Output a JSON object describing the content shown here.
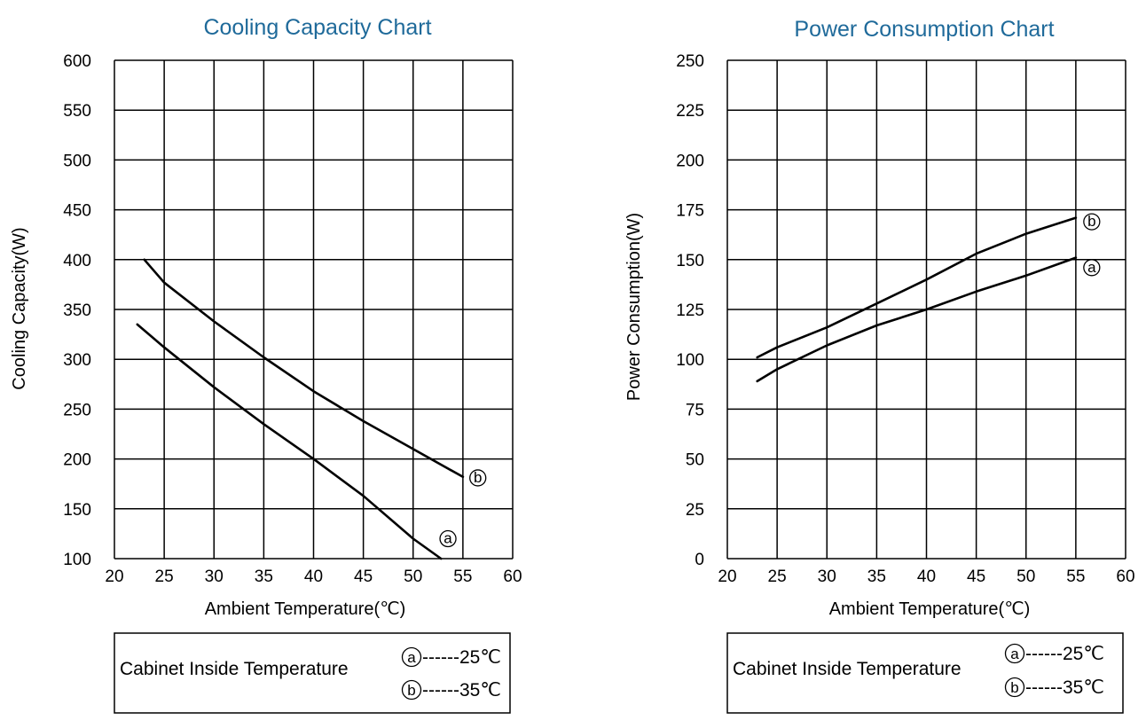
{
  "chart_data": [
    {
      "type": "line",
      "title": "Cooling Capacity Chart",
      "xlabel": "Ambient Temperature(℃)",
      "ylabel": "Cooling  Capacity(W)",
      "xlim": [
        20,
        60
      ],
      "ylim": [
        100,
        600
      ],
      "x_ticks": [
        20,
        25,
        30,
        35,
        40,
        45,
        50,
        55,
        60
      ],
      "y_ticks": [
        100,
        150,
        200,
        250,
        300,
        350,
        400,
        450,
        500,
        550,
        600
      ],
      "grid": true,
      "series": [
        {
          "name": "a",
          "x": [
            22.3,
            25,
            30,
            35,
            40,
            45,
            50,
            52.8
          ],
          "values": [
            335,
            312,
            272,
            235,
            200,
            163,
            120,
            100
          ]
        },
        {
          "name": "b",
          "x": [
            23,
            25,
            30,
            35,
            40,
            45,
            50,
            55
          ],
          "values": [
            400,
            377,
            338,
            302,
            268,
            238,
            210,
            182
          ]
        }
      ],
      "marker_labels": [
        {
          "text": "a",
          "x": 53.5,
          "y": 120
        },
        {
          "text": "b",
          "x": 56.5,
          "y": 181
        }
      ],
      "legend": {
        "label": "Cabinet Inside Temperature",
        "entries": [
          {
            "marker": "a",
            "text": "------25℃"
          },
          {
            "marker": "b",
            "text": "------35℃"
          }
        ]
      }
    },
    {
      "type": "line",
      "title": "Power Consumption Chart",
      "xlabel": "Ambient Temperature(℃)",
      "ylabel": "Power Consumption(W)",
      "xlim": [
        20,
        60
      ],
      "ylim": [
        0,
        250
      ],
      "x_ticks": [
        20,
        25,
        30,
        35,
        40,
        45,
        50,
        55,
        60
      ],
      "y_ticks": [
        0,
        25,
        50,
        75,
        100,
        125,
        150,
        175,
        200,
        225,
        250
      ],
      "grid": true,
      "series": [
        {
          "name": "a",
          "x": [
            23,
            25,
            30,
            35,
            40,
            45,
            50,
            55
          ],
          "values": [
            89,
            95,
            107,
            117,
            125,
            134,
            142,
            151
          ]
        },
        {
          "name": "b",
          "x": [
            23,
            25,
            30,
            35,
            40,
            45,
            50,
            55
          ],
          "values": [
            101,
            106,
            116,
            128,
            140,
            153,
            163,
            171
          ]
        }
      ],
      "marker_labels": [
        {
          "text": "a",
          "x": 56.6,
          "y": 146
        },
        {
          "text": "b",
          "x": 56.6,
          "y": 169
        }
      ],
      "legend": {
        "label": "Cabinet Inside Temperature",
        "entries": [
          {
            "marker": "a",
            "text": " ------25℃"
          },
          {
            "marker": "b",
            "text": " ------35℃"
          }
        ]
      }
    }
  ]
}
